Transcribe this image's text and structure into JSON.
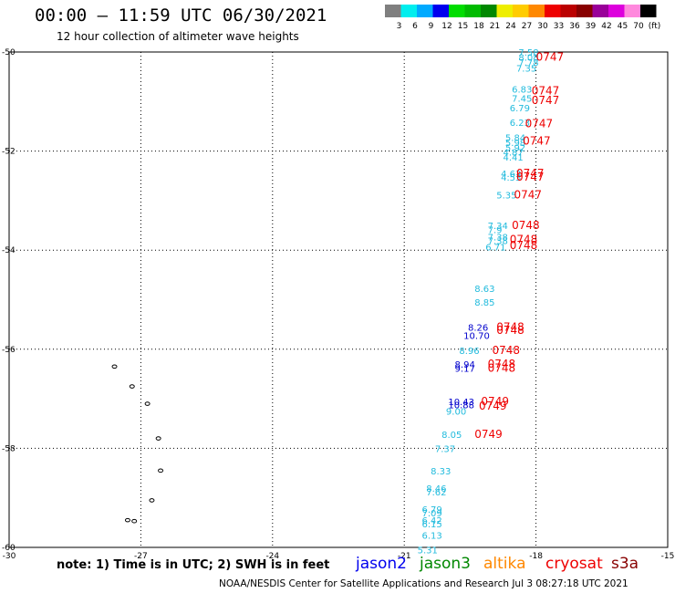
{
  "header": {
    "title": "00:00 – 11:59 UTC 06/30/2021",
    "subtitle": "12 hour collection of altimeter wave heights"
  },
  "colorbar": {
    "unit": "(ft)",
    "bins": [
      {
        "label": "3",
        "color": "#7f7f7f"
      },
      {
        "label": "6",
        "color": "#00eeee"
      },
      {
        "label": "9",
        "color": "#00aaff"
      },
      {
        "label": "12",
        "color": "#0000ee"
      },
      {
        "label": "15",
        "color": "#00dd00"
      },
      {
        "label": "18",
        "color": "#00bb00"
      },
      {
        "label": "21",
        "color": "#008800"
      },
      {
        "label": "24",
        "color": "#eeee00"
      },
      {
        "label": "27",
        "color": "#ffcc00"
      },
      {
        "label": "30",
        "color": "#ff8800"
      },
      {
        "label": "33",
        "color": "#ee0000"
      },
      {
        "label": "36",
        "color": "#bb0000"
      },
      {
        "label": "39",
        "color": "#880000"
      },
      {
        "label": "42",
        "color": "#990099"
      },
      {
        "label": "45",
        "color": "#dd00dd"
      },
      {
        "label": "70",
        "color": "#ff88dd"
      },
      {
        "label": "",
        "color": "#000000"
      }
    ]
  },
  "map": {
    "lon_range": [
      -30,
      -15
    ],
    "lat_range": [
      -60,
      -50
    ],
    "lon_ticks": [
      "-30",
      "-27",
      "-24",
      "-21",
      "-18",
      "-15"
    ],
    "lat_ticks": [
      "-50",
      "-52",
      "-54",
      "-56",
      "-58",
      "-60"
    ],
    "colors": {
      "light": "#22bbdd",
      "dark": "#0000cc",
      "time": "#ee0000"
    },
    "swh_values": [
      {
        "text": "7.58",
        "lon": -18.4,
        "lat": -50.0,
        "c": "light"
      },
      {
        "text": "8.08",
        "lon": -18.4,
        "lat": -50.1,
        "c": "light"
      },
      {
        "text": "7.78",
        "lon": -18.4,
        "lat": -50.2,
        "c": "light"
      },
      {
        "text": "7.35",
        "lon": -18.45,
        "lat": -50.32,
        "c": "light"
      },
      {
        "text": "6.83",
        "lon": -18.55,
        "lat": -50.75,
        "c": "light"
      },
      {
        "text": "7.45",
        "lon": -18.55,
        "lat": -50.93,
        "c": "light"
      },
      {
        "text": "6.79",
        "lon": -18.6,
        "lat": -51.12,
        "c": "light"
      },
      {
        "text": "6.23",
        "lon": -18.6,
        "lat": -51.42,
        "c": "light"
      },
      {
        "text": "5.84",
        "lon": -18.7,
        "lat": -51.72,
        "c": "light"
      },
      {
        "text": "5.98",
        "lon": -18.7,
        "lat": -51.82,
        "c": "light"
      },
      {
        "text": "5.92",
        "lon": -18.7,
        "lat": -51.92,
        "c": "light"
      },
      {
        "text": "4.87",
        "lon": -18.75,
        "lat": -52.02,
        "c": "light"
      },
      {
        "text": "4.41",
        "lon": -18.75,
        "lat": -52.12,
        "c": "light"
      },
      {
        "text": "4.63",
        "lon": -18.8,
        "lat": -52.45,
        "c": "light"
      },
      {
        "text": "4.53",
        "lon": -18.8,
        "lat": -52.52,
        "c": "light"
      },
      {
        "text": "5.35",
        "lon": -18.9,
        "lat": -52.88,
        "c": "light"
      },
      {
        "text": "7.34",
        "lon": -19.1,
        "lat": -53.5,
        "c": "light"
      },
      {
        "text": "7.9",
        "lon": -19.1,
        "lat": -53.58,
        "c": "light"
      },
      {
        "text": "7.38",
        "lon": -19.1,
        "lat": -53.73,
        "c": "light"
      },
      {
        "text": "7.38",
        "lon": -19.1,
        "lat": -53.8,
        "c": "light"
      },
      {
        "text": "6.71",
        "lon": -19.15,
        "lat": -53.93,
        "c": "light"
      },
      {
        "text": "8.63",
        "lon": -19.4,
        "lat": -54.77,
        "c": "light"
      },
      {
        "text": "8.85",
        "lon": -19.4,
        "lat": -55.05,
        "c": "light"
      },
      {
        "text": "8.26",
        "lon": -19.55,
        "lat": -55.55,
        "c": "dark"
      },
      {
        "text": "10.70",
        "lon": -19.65,
        "lat": -55.72,
        "c": "dark"
      },
      {
        "text": "8.96",
        "lon": -19.75,
        "lat": -56.02,
        "c": "light"
      },
      {
        "text": "8.94",
        "lon": -19.85,
        "lat": -56.3,
        "c": "dark"
      },
      {
        "text": "9.17",
        "lon": -19.85,
        "lat": -56.38,
        "c": "dark"
      },
      {
        "text": "10.43",
        "lon": -20.0,
        "lat": -57.05,
        "c": "dark"
      },
      {
        "text": "10.88",
        "lon": -20.0,
        "lat": -57.12,
        "c": "dark"
      },
      {
        "text": "9.00",
        "lon": -20.05,
        "lat": -57.25,
        "c": "light"
      },
      {
        "text": "8.05",
        "lon": -20.15,
        "lat": -57.72,
        "c": "light"
      },
      {
        "text": "7.37",
        "lon": -20.3,
        "lat": -58.0,
        "c": "light"
      },
      {
        "text": "8.33",
        "lon": -20.4,
        "lat": -58.45,
        "c": "light"
      },
      {
        "text": "8.46",
        "lon": -20.5,
        "lat": -58.8,
        "c": "light"
      },
      {
        "text": "7.62",
        "lon": -20.5,
        "lat": -58.88,
        "c": "light"
      },
      {
        "text": "6.79",
        "lon": -20.6,
        "lat": -59.23,
        "c": "light"
      },
      {
        "text": "7.09",
        "lon": -20.6,
        "lat": -59.3,
        "c": "light"
      },
      {
        "text": "6.42",
        "lon": -20.6,
        "lat": -59.45,
        "c": "light"
      },
      {
        "text": "6.15",
        "lon": -20.6,
        "lat": -59.52,
        "c": "light"
      },
      {
        "text": "6.13",
        "lon": -20.6,
        "lat": -59.75,
        "c": "light"
      },
      {
        "text": "5.31",
        "lon": -20.7,
        "lat": -60.05,
        "c": "light"
      }
    ],
    "time_labels": [
      {
        "text": "0747",
        "lon": -18.0,
        "lat": -50.1
      },
      {
        "text": "0747",
        "lon": -18.1,
        "lat": -50.78
      },
      {
        "text": "0747",
        "lon": -18.1,
        "lat": -50.98
      },
      {
        "text": "0747",
        "lon": -18.25,
        "lat": -51.45
      },
      {
        "text": "0747",
        "lon": -18.3,
        "lat": -51.8
      },
      {
        "text": "0747",
        "lon": -18.45,
        "lat": -52.45
      },
      {
        "text": "0747",
        "lon": -18.45,
        "lat": -52.52
      },
      {
        "text": "0747",
        "lon": -18.5,
        "lat": -52.88
      },
      {
        "text": "0748",
        "lon": -18.55,
        "lat": -53.5
      },
      {
        "text": "0748",
        "lon": -18.6,
        "lat": -53.78
      },
      {
        "text": "0748",
        "lon": -18.6,
        "lat": -53.9
      },
      {
        "text": "0748",
        "lon": -18.9,
        "lat": -55.55
      },
      {
        "text": "0748",
        "lon": -18.9,
        "lat": -55.62
      },
      {
        "text": "0748",
        "lon": -19.0,
        "lat": -56.02
      },
      {
        "text": "0748",
        "lon": -19.1,
        "lat": -56.3
      },
      {
        "text": "0748",
        "lon": -19.1,
        "lat": -56.38
      },
      {
        "text": "0749",
        "lon": -19.25,
        "lat": -57.05
      },
      {
        "text": "0749",
        "lon": -19.3,
        "lat": -57.15
      },
      {
        "text": "0749",
        "lon": -19.4,
        "lat": -57.72
      }
    ],
    "islands": [
      {
        "lon": -27.6,
        "lat": -56.35
      },
      {
        "lon": -27.2,
        "lat": -56.75
      },
      {
        "lon": -26.85,
        "lat": -57.1
      },
      {
        "lon": -26.6,
        "lat": -57.8
      },
      {
        "lon": -26.55,
        "lat": -58.45
      },
      {
        "lon": -26.75,
        "lat": -59.05
      },
      {
        "lon": -27.3,
        "lat": -59.45
      },
      {
        "lon": -27.15,
        "lat": -59.47
      }
    ]
  },
  "footer": {
    "note": "note:  1) Time is in UTC;  2) SWH is in feet",
    "satellites": [
      {
        "name": "jason2",
        "color": "#0000ee"
      },
      {
        "name": "jason3",
        "color": "#008800"
      },
      {
        "name": "altika",
        "color": "#ff8800"
      },
      {
        "name": "cryosat",
        "color": "#ee0000"
      },
      {
        "name": "s3a",
        "color": "#880000"
      }
    ],
    "credit": "NOAA/NESDIS Center for Satellite Applications and Research     Jul  3 08:27:18 UTC 2021"
  }
}
